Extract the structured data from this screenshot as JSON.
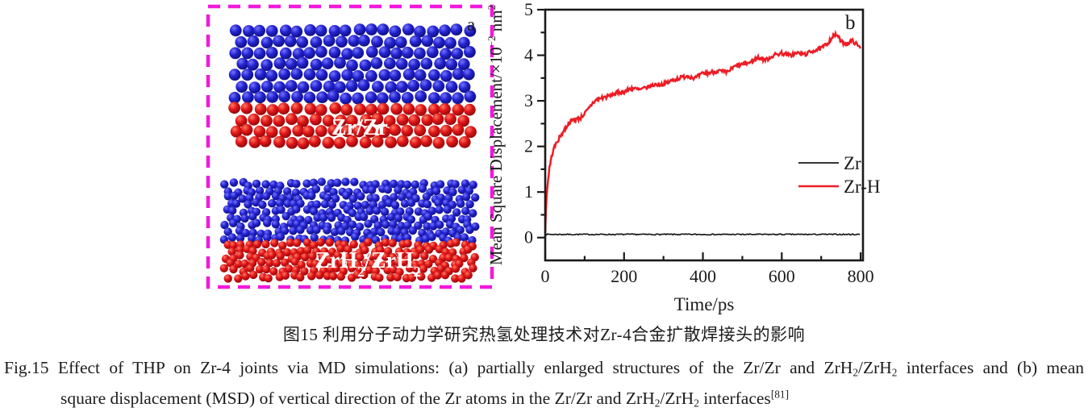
{
  "figure": {
    "panel_a": {
      "panel_label": "a",
      "border_color": "#f318dd",
      "atom_colors": {
        "blue_base": "#2323cf",
        "blue_highlight": "#7474ff",
        "blue_dark": "#0a0a6e",
        "red_base": "#e01418",
        "red_highlight": "#ff7a60",
        "red_dark": "#7e0606"
      },
      "structures": [
        {
          "id": "zr-zr",
          "style": "crystalline",
          "label_segments": [
            {
              "t": "Zr/Zr"
            }
          ]
        },
        {
          "id": "zrh2-zrh2",
          "style": "amorphous",
          "label_segments": [
            {
              "t": "ZrH"
            },
            {
              "t": "2",
              "sub": true
            },
            {
              "t": "/ZrH"
            },
            {
              "t": "2",
              "sub": true
            }
          ]
        }
      ]
    }
  },
  "chart_data": {
    "type": "line",
    "panel_label": "b",
    "xlabel": "Time/ps",
    "ylabel_segments": [
      {
        "t": "Mean Square Displacement/×10"
      },
      {
        "t": "−2",
        "sup": true
      },
      {
        "t": " nm"
      },
      {
        "t": "2",
        "sup": true
      }
    ],
    "xlim": [
      0,
      806
    ],
    "ylim": [
      -0.5,
      5
    ],
    "xticks": [
      0,
      200,
      400,
      600,
      800
    ],
    "xminorticks": [
      100,
      300,
      500,
      700
    ],
    "yticks": [
      0,
      1,
      2,
      3,
      4,
      5
    ],
    "yminorticks": [
      0.5,
      1.5,
      2.5,
      3.5,
      4.5
    ],
    "grid": false,
    "legend_position": "right-center",
    "axis_color": "#1a1a1a",
    "series": [
      {
        "name": "Zr",
        "color": "#1a1a1a",
        "width": 1.7,
        "noise": 0.012,
        "step": 3,
        "points": [
          [
            0,
            0.07
          ],
          [
            800,
            0.07
          ]
        ]
      },
      {
        "name": "Zr-H",
        "color": "#ee1c25",
        "width": 2.5,
        "noise": 0.045,
        "step": 1.8,
        "points": [
          [
            0,
            0.1
          ],
          [
            1,
            0.5
          ],
          [
            3,
            0.85
          ],
          [
            5,
            1.05
          ],
          [
            10,
            1.5
          ],
          [
            15,
            1.72
          ],
          [
            20,
            1.92
          ],
          [
            30,
            2.1
          ],
          [
            40,
            2.25
          ],
          [
            50,
            2.38
          ],
          [
            60,
            2.52
          ],
          [
            70,
            2.58
          ],
          [
            80,
            2.6
          ],
          [
            90,
            2.63
          ],
          [
            100,
            2.72
          ],
          [
            110,
            2.82
          ],
          [
            120,
            2.95
          ],
          [
            130,
            3.02
          ],
          [
            145,
            3.07
          ],
          [
            160,
            3.1
          ],
          [
            180,
            3.17
          ],
          [
            200,
            3.2
          ],
          [
            220,
            3.28
          ],
          [
            240,
            3.24
          ],
          [
            260,
            3.3
          ],
          [
            280,
            3.36
          ],
          [
            300,
            3.36
          ],
          [
            320,
            3.44
          ],
          [
            340,
            3.5
          ],
          [
            360,
            3.55
          ],
          [
            380,
            3.5
          ],
          [
            400,
            3.6
          ],
          [
            420,
            3.62
          ],
          [
            440,
            3.66
          ],
          [
            460,
            3.62
          ],
          [
            480,
            3.75
          ],
          [
            500,
            3.8
          ],
          [
            520,
            3.84
          ],
          [
            540,
            3.95
          ],
          [
            560,
            3.9
          ],
          [
            580,
            4.0
          ],
          [
            600,
            4.05
          ],
          [
            620,
            4.0
          ],
          [
            640,
            4.05
          ],
          [
            660,
            4.02
          ],
          [
            680,
            4.1
          ],
          [
            700,
            4.15
          ],
          [
            715,
            4.25
          ],
          [
            730,
            4.42
          ],
          [
            740,
            4.45
          ],
          [
            750,
            4.3
          ],
          [
            765,
            4.25
          ],
          [
            780,
            4.32
          ],
          [
            800,
            4.15
          ]
        ]
      }
    ]
  },
  "captions": {
    "chinese": "图15  利用分子动力学研究热氢处理技术对Zr-4合金扩散焊接头的影响",
    "english_line1": [
      {
        "t": "Fig.15  Effect of THP on Zr-4 joints via MD simulations: (a) partially enlarged structures of the Zr/Zr and ZrH"
      },
      {
        "t": "2",
        "sub": true
      },
      {
        "t": "/ZrH"
      },
      {
        "t": "2",
        "sub": true
      },
      {
        "t": " interfaces and (b) mean"
      }
    ],
    "english_line2": [
      {
        "t": "square displacement (MSD) of vertical direction of the Zr atoms in the Zr/Zr and ZrH"
      },
      {
        "t": "2",
        "sub": true
      },
      {
        "t": "/ZrH"
      },
      {
        "t": "2",
        "sub": true
      },
      {
        "t": " interfaces"
      },
      {
        "t": "[81]",
        "sup": true
      }
    ]
  }
}
